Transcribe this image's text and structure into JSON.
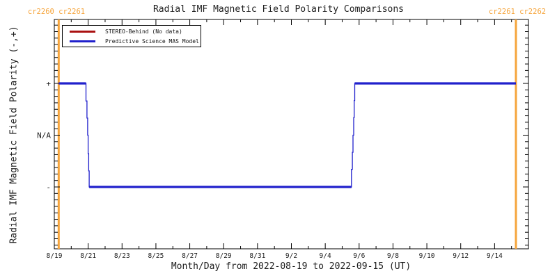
{
  "carrington": {
    "left_text": "cr2260 cr2261",
    "right_text": "cr2261 cr2262"
  },
  "colors": {
    "orange": "#F6A53C",
    "red": "#AA1111",
    "blue": "#2020CC",
    "frame": "#000000",
    "background": "#FFFFFF",
    "title_text": "#1C1C1C"
  },
  "chart_data": {
    "type": "line",
    "step_mode": true,
    "grid": false,
    "legend_position": "top-left-inside",
    "title": "Radial IMF Magnetic Field Polarity Comparisons",
    "x_axis": {
      "label": "Month/Day from 2022-08-19 to 2022-09-15 (UT)",
      "start_date": "2022-08-19",
      "end_date": "2022-09-15",
      "range_days": [
        0,
        28
      ],
      "major_tick_days": 2,
      "minor_tick_days": 1,
      "tick_labels": [
        "8/19",
        "8/21",
        "8/23",
        "8/25",
        "8/27",
        "8/29",
        "8/31",
        "9/2",
        "9/4",
        "9/6",
        "9/8",
        "9/10",
        "9/12",
        "9/14"
      ]
    },
    "y_axis": {
      "label": "Radial IMF Magnetic Field Polarity (-,+)",
      "tick_labels": [
        "+",
        "N/A",
        "-"
      ],
      "tick_values": [
        1,
        0,
        -1
      ],
      "range": [
        -2.2,
        2.24
      ],
      "minor_tick_step": 0.125
    },
    "carrington_boundaries": [
      {
        "day": 0.26,
        "between": "cr2260/cr2261",
        "date_approx": "2022-08-19 ~06:00"
      },
      {
        "day": 27.26,
        "between": "cr2261/cr2262",
        "date_approx": "2022-09-15 ~06:00"
      }
    ],
    "series": [
      {
        "name": "STEREO-Behind (No data)",
        "color": "#AA1111",
        "no_data": true,
        "step_points": [],
        "flat_segments": []
      },
      {
        "name": "Predictive Science MAS Model",
        "color": "#2020CC",
        "polarity_intervals": [
          {
            "polarity": "+",
            "start_day": 0.26,
            "end_day": 1.87,
            "start_date": "2022-08-19 ~06:00",
            "end_date": "2022-08-20 ~21:00"
          },
          {
            "polarity": "-",
            "start_day": 2.06,
            "end_day": 17.55,
            "start_date": "2022-08-21 ~02:00",
            "end_date": "2022-09-05 ~13:00"
          },
          {
            "polarity": "+",
            "start_day": 17.74,
            "end_day": 27.26,
            "start_date": "2022-09-05 ~18:00",
            "end_date": "2022-09-15 ~06:00"
          }
        ],
        "step_points": [
          [
            0.26,
            1
          ],
          [
            1.87,
            1
          ],
          [
            1.87,
            0.66
          ],
          [
            1.93,
            0.66
          ],
          [
            1.93,
            0.33
          ],
          [
            1.97,
            0.33
          ],
          [
            1.97,
            0
          ],
          [
            2.0,
            0
          ],
          [
            2.0,
            -0.36
          ],
          [
            2.03,
            -0.36
          ],
          [
            2.03,
            -0.69
          ],
          [
            2.06,
            -0.69
          ],
          [
            2.06,
            -1
          ],
          [
            17.55,
            -1
          ],
          [
            17.55,
            -0.66
          ],
          [
            17.6,
            -0.66
          ],
          [
            17.6,
            -0.33
          ],
          [
            17.64,
            -0.33
          ],
          [
            17.64,
            0
          ],
          [
            17.68,
            0
          ],
          [
            17.68,
            0.34
          ],
          [
            17.71,
            0.34
          ],
          [
            17.71,
            0.67
          ],
          [
            17.74,
            0.67
          ],
          [
            17.74,
            1
          ],
          [
            27.26,
            1
          ]
        ],
        "flat_segments": [
          {
            "start_day": 0.26,
            "end_day": 1.87,
            "value": 1
          },
          {
            "start_day": 2.06,
            "end_day": 17.55,
            "value": -1
          },
          {
            "start_day": 17.74,
            "end_day": 27.26,
            "value": 1
          }
        ]
      }
    ]
  }
}
